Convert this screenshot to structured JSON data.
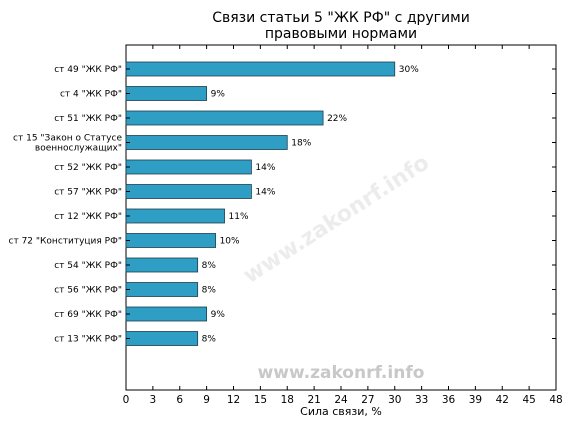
{
  "chart_data": {
    "type": "bar",
    "orientation": "horizontal",
    "title_lines": [
      "Связи статьи 5 \"ЖК РФ\" с другими",
      "правовыми нормами"
    ],
    "xlabel": "Сила связи, %",
    "categories": [
      [
        "ст 49 \"ЖК РФ\""
      ],
      [
        "ст 4 \"ЖК РФ\""
      ],
      [
        "ст 51 \"ЖК РФ\""
      ],
      [
        "ст 15 \"Закон о Статусе",
        "военнослужащих\""
      ],
      [
        "ст 52 \"ЖК РФ\""
      ],
      [
        "ст 57 \"ЖК РФ\""
      ],
      [
        "ст 12 \"ЖК РФ\""
      ],
      [
        "ст 72 \"Конституция РФ\""
      ],
      [
        "ст 54 \"ЖК РФ\""
      ],
      [
        "ст 56 \"ЖК РФ\""
      ],
      [
        "ст 69 \"ЖК РФ\""
      ],
      [
        "ст 13 \"ЖК РФ\""
      ]
    ],
    "values": [
      30,
      9,
      22,
      18,
      14,
      14,
      11,
      10,
      8,
      8,
      9,
      8
    ],
    "data_labels": [
      "30%",
      "9%",
      "22%",
      "18%",
      "14%",
      "14%",
      "11%",
      "10%",
      "8%",
      "8%",
      "9%",
      "8%"
    ],
    "xlim": [
      0,
      48
    ],
    "xticks": [
      0,
      3,
      6,
      9,
      12,
      15,
      18,
      21,
      24,
      27,
      30,
      33,
      36,
      39,
      42,
      45,
      48
    ],
    "grid": false,
    "bar_color": "#2e9ec4",
    "bar_edge_color": "#1f3f4f",
    "watermark": "www.zakonrf.info"
  }
}
